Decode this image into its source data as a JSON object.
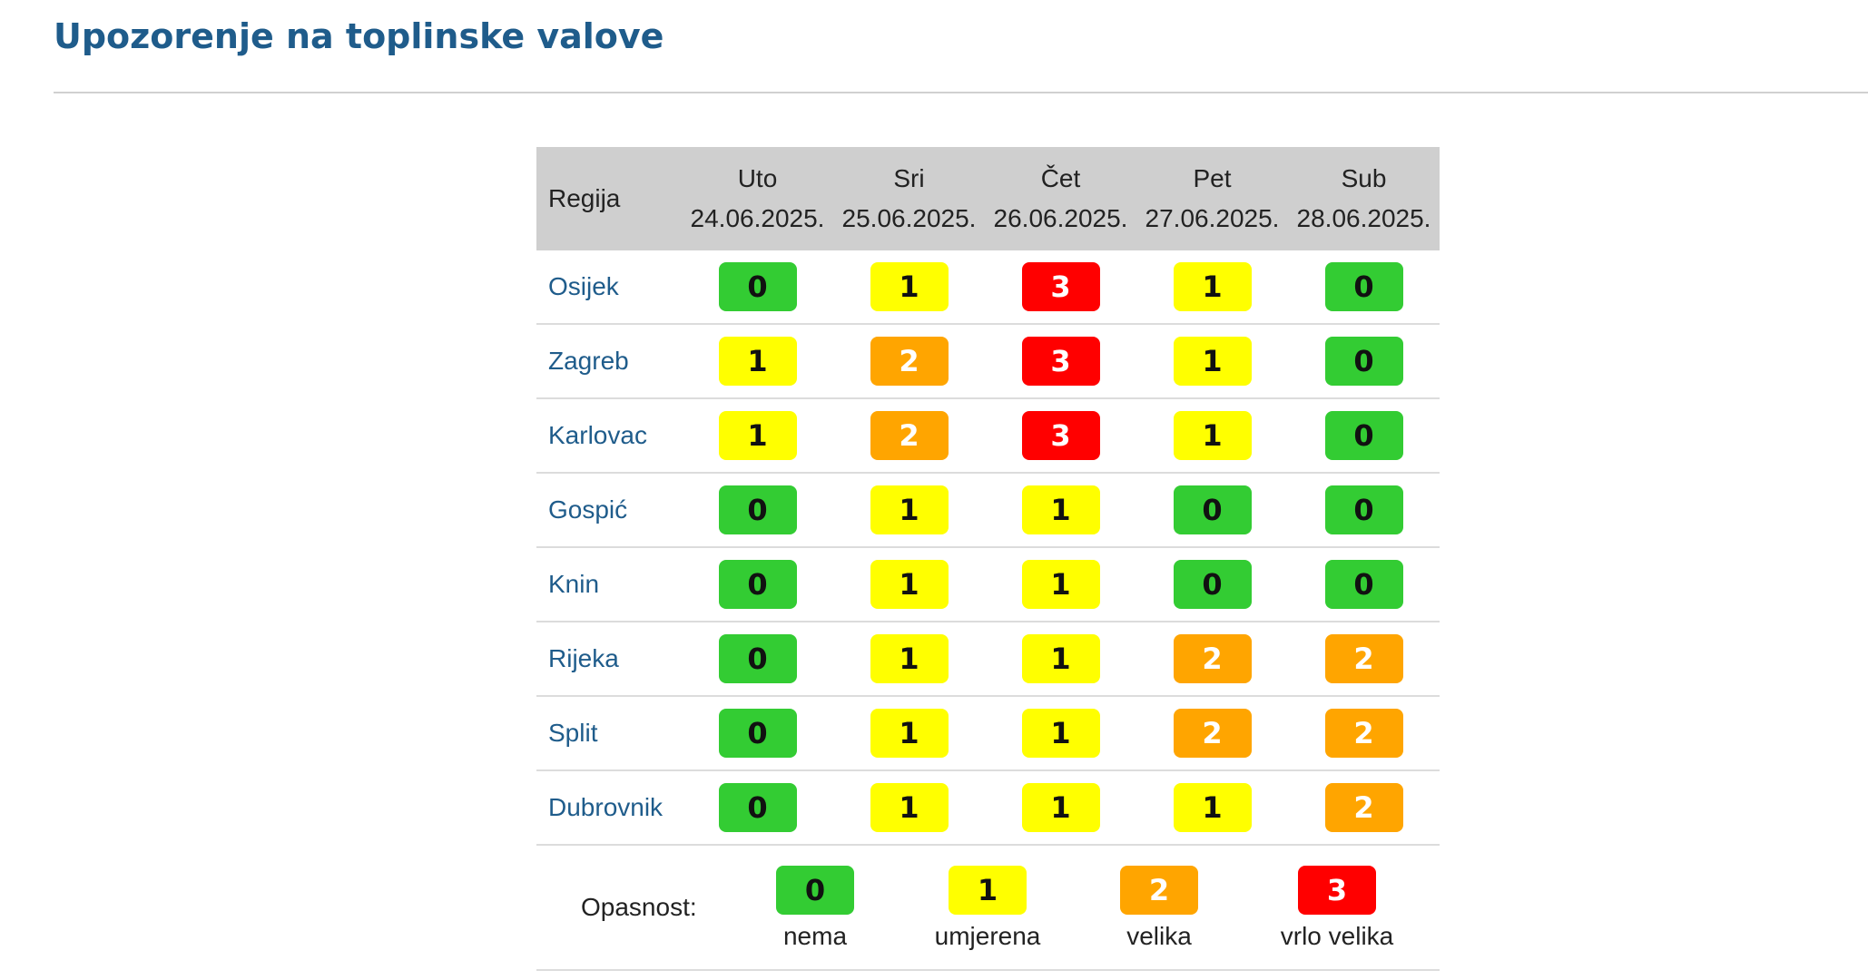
{
  "page": {
    "title": "Upozorenje na toplinske valove"
  },
  "table": {
    "region_header": "Regija",
    "days": [
      {
        "day": "Uto",
        "date": "24.06.2025."
      },
      {
        "day": "Sri",
        "date": "25.06.2025."
      },
      {
        "day": "Čet",
        "date": "26.06.2025."
      },
      {
        "day": "Pet",
        "date": "27.06.2025."
      },
      {
        "day": "Sub",
        "date": "28.06.2025."
      }
    ],
    "rows": [
      {
        "region": "Osijek",
        "levels": [
          "0",
          "1",
          "3",
          "1",
          "0"
        ]
      },
      {
        "region": "Zagreb",
        "levels": [
          "1",
          "2",
          "3",
          "1",
          "0"
        ]
      },
      {
        "region": "Karlovac",
        "levels": [
          "1",
          "2",
          "3",
          "1",
          "0"
        ]
      },
      {
        "region": "Gospić",
        "levels": [
          "0",
          "1",
          "1",
          "0",
          "0"
        ]
      },
      {
        "region": "Knin",
        "levels": [
          "0",
          "1",
          "1",
          "0",
          "0"
        ]
      },
      {
        "region": "Rijeka",
        "levels": [
          "0",
          "1",
          "1",
          "2",
          "2"
        ]
      },
      {
        "region": "Split",
        "levels": [
          "0",
          "1",
          "1",
          "2",
          "2"
        ]
      },
      {
        "region": "Dubrovnik",
        "levels": [
          "0",
          "1",
          "1",
          "1",
          "2"
        ]
      }
    ]
  },
  "legend": {
    "label": "Opasnost:",
    "items": [
      {
        "level": "0",
        "text": "nema"
      },
      {
        "level": "1",
        "text": "umjerena"
      },
      {
        "level": "2",
        "text": "velika"
      },
      {
        "level": "3",
        "text": "vrlo velika"
      }
    ]
  },
  "colors": {
    "level_0": "#33cc33",
    "level_1": "#ffff00",
    "level_2": "#ffa500",
    "level_3": "#ff0000",
    "title": "#1f5c8b",
    "header_bg": "#cfcfcf"
  }
}
